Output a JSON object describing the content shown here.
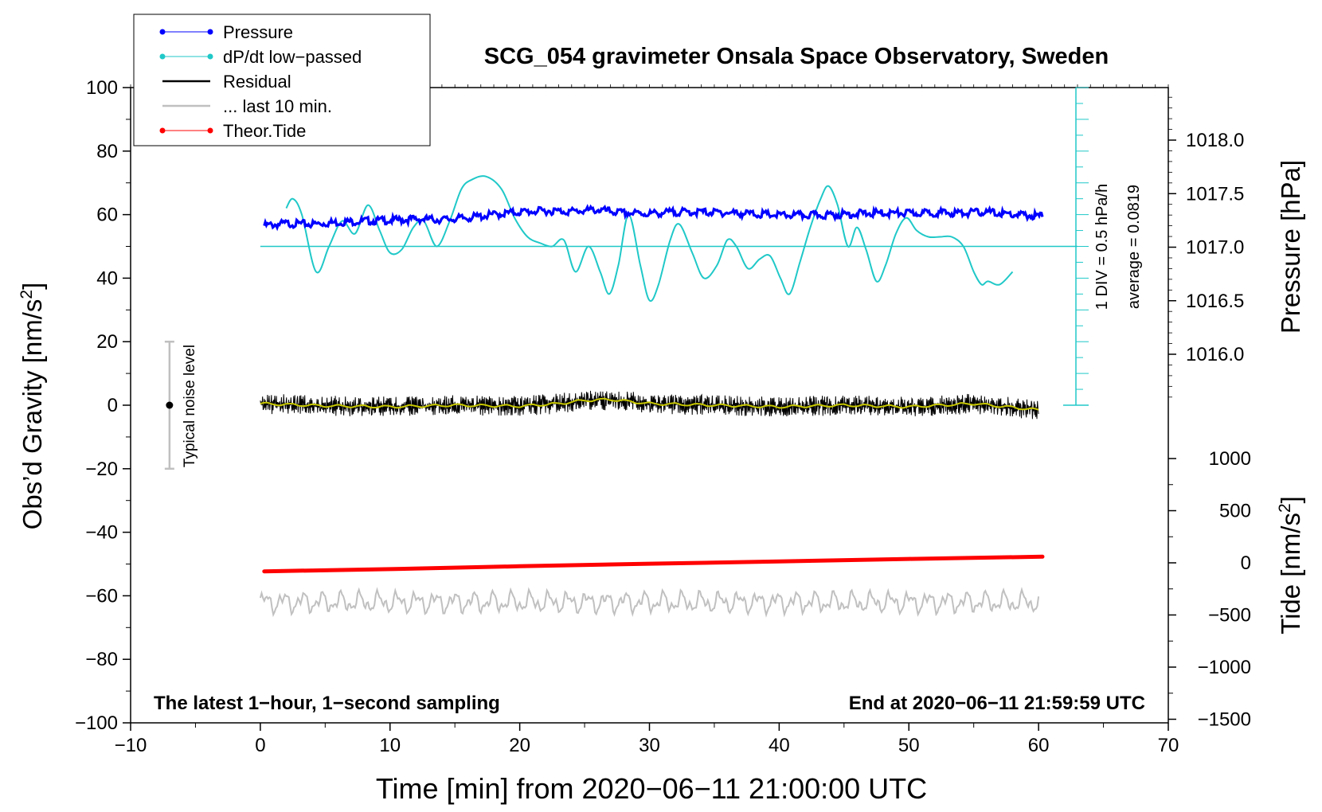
{
  "chart_data": {
    "type": "line",
    "title": "SCG_054 gravimeter Onsala Space Observatory, Sweden",
    "xlabel": "Time [min] from 2020−06−11 21:00:00 UTC",
    "ylabel_left": "Obs’d Gravity [nm/s",
    "ylabel_left_sup": "2",
    "ylabel_left_end": "]",
    "ylabel_right_pressure": "Pressure [hPa]",
    "ylabel_right_tide": "Tide [nm/s",
    "ylabel_right_tide_sup": "2",
    "ylabel_right_tide_end": "]",
    "xlim": [
      -10,
      70
    ],
    "ylim_left": [
      -100,
      100
    ],
    "x_ticks": [
      -10,
      0,
      10,
      20,
      30,
      40,
      50,
      60,
      70
    ],
    "x_tick_labels": [
      "−10",
      "0",
      "10",
      "20",
      "30",
      "40",
      "50",
      "60",
      "70"
    ],
    "y_left_ticks": [
      100,
      80,
      60,
      40,
      20,
      0,
      -20,
      -40,
      -60,
      -80,
      -100
    ],
    "y_left_tick_labels": [
      "100",
      "80",
      "60",
      "40",
      "20",
      "0",
      "−20",
      "−40",
      "−60",
      "−80",
      "−100"
    ],
    "pressure_axis": {
      "range_hPa": [
        1015.5,
        1018.5
      ],
      "ticks": [
        1018.0,
        1017.5,
        1017.0,
        1016.5,
        1016.0
      ],
      "tick_labels": [
        "1018.0",
        "1017.5",
        "1017.0",
        "1016.5",
        "1016.0"
      ]
    },
    "tide_axis": {
      "ticks": [
        1000,
        500,
        0,
        -500,
        -1000,
        -1500
      ],
      "tick_labels": [
        "1000",
        "500",
        "0",
        "−500",
        "−1000",
        "−1500"
      ]
    },
    "legend": [
      {
        "label": "Pressure",
        "color": "#0000ff",
        "marker": "dot"
      },
      {
        "label": "dP/dt low−passed",
        "color": "#20c8c8",
        "marker": "dot"
      },
      {
        "label": "Residual",
        "color": "#000000",
        "marker": "none"
      },
      {
        "label": "... last 10 min.",
        "color": "#c0c0c0",
        "marker": "none"
      },
      {
        "label": "Theor.Tide",
        "color": "#ff0000",
        "marker": "dot"
      }
    ],
    "legend_position": "top-left",
    "dpdt_scale_label": "1 DIV = 0.5 hPa/h",
    "dpdt_average_label": "average = 0.0819",
    "dpdt_baseline_gravity": 50,
    "noise_label": "Typical noise level",
    "noise_bar": {
      "x": -7,
      "center": 0,
      "half_range": 20
    },
    "footer_left": "The latest 1−hour, 1−second sampling",
    "footer_right": "End at 2020−06−11 21:59:59 UTC",
    "series": [
      {
        "name": "Pressure",
        "color": "#0000ff",
        "units": "gravity-axis equivalent",
        "x": [
          0.3,
          2,
          4,
          6,
          8,
          10,
          12,
          14,
          16,
          18,
          20,
          22,
          24,
          26,
          27,
          28,
          30,
          32,
          34,
          36,
          38,
          40,
          42,
          44,
          46,
          48,
          50,
          52,
          54,
          56,
          58,
          60.3
        ],
        "values": [
          56.5,
          57.2,
          57.0,
          57.6,
          58.0,
          58.2,
          58.6,
          58.4,
          59.0,
          60.0,
          60.8,
          61.2,
          61.0,
          61.5,
          61.0,
          60.5,
          60.3,
          60.8,
          60.8,
          60.6,
          60.2,
          59.8,
          59.8,
          59.9,
          60.3,
          60.5,
          60.4,
          60.6,
          60.5,
          60.8,
          60.0,
          59.5
        ]
      },
      {
        "name": "dP/dt low−passed",
        "color": "#20c8c8",
        "units": "gravity-axis equivalent",
        "x": [
          2.0,
          2.5,
          3.2,
          4.3,
          5.3,
          6.3,
          7.3,
          8.3,
          9.2,
          10.0,
          10.9,
          11.8,
          12.6,
          13.6,
          14.6,
          15.5,
          16.3,
          17.4,
          18.6,
          19.6,
          20.6,
          21.6,
          22.5,
          23.4,
          24.3,
          25.3,
          26.2,
          26.9,
          27.6,
          28.4,
          29.3,
          30.0,
          30.7,
          31.6,
          32.3,
          33.3,
          34.2,
          35.2,
          36.0,
          36.7,
          37.6,
          38.5,
          39.3,
          40.1,
          40.8,
          41.6,
          42.4,
          43.2,
          43.8,
          44.5,
          45.3,
          46.0,
          46.7,
          47.5,
          48.2,
          49.0,
          49.8,
          50.6,
          51.5,
          52.4,
          53.3,
          54.2,
          55.0,
          55.6,
          56.1,
          57.0,
          58.0
        ],
        "values": [
          62,
          65,
          60,
          42,
          50,
          58,
          54,
          63,
          55,
          48,
          49,
          56,
          58,
          50,
          58,
          68,
          71,
          72,
          68,
          59,
          53,
          51,
          50,
          52,
          42,
          50,
          42,
          35,
          44,
          60,
          44,
          33,
          38,
          52,
          57,
          48,
          40,
          44,
          52,
          50,
          43,
          46,
          47,
          40,
          35,
          45,
          56,
          65,
          69,
          63,
          50,
          56,
          49,
          39,
          44,
          54,
          59,
          55,
          53,
          53,
          53,
          50,
          42,
          38,
          39,
          38,
          42
        ]
      },
      {
        "name": "Residual",
        "color": "#000000",
        "x": [
          0,
          5,
          10,
          15,
          20,
          23,
          25,
          27,
          30,
          35,
          40,
          45,
          50,
          55,
          60
        ],
        "values": [
          0.5,
          -0.2,
          -0.5,
          0.0,
          -0.3,
          0.5,
          1.5,
          1.8,
          0.5,
          0.0,
          -0.5,
          0.0,
          -0.5,
          0.5,
          -1.5
        ]
      },
      {
        "name": "... last 10 min.",
        "color": "#c0c0c0",
        "x": [
          0,
          10,
          20,
          30,
          40,
          50,
          60
        ],
        "values": [
          -62,
          -62,
          -62,
          -62,
          -62,
          -62,
          -62
        ]
      },
      {
        "name": "Theor.Tide",
        "color": "#ff0000",
        "units": "gravity-axis equivalent",
        "x": [
          0.3,
          10,
          20,
          30,
          40,
          50,
          60.3
        ],
        "values": [
          -52.3,
          -51.6,
          -50.7,
          -49.9,
          -49.2,
          -48.4,
          -47.7
        ]
      }
    ]
  }
}
